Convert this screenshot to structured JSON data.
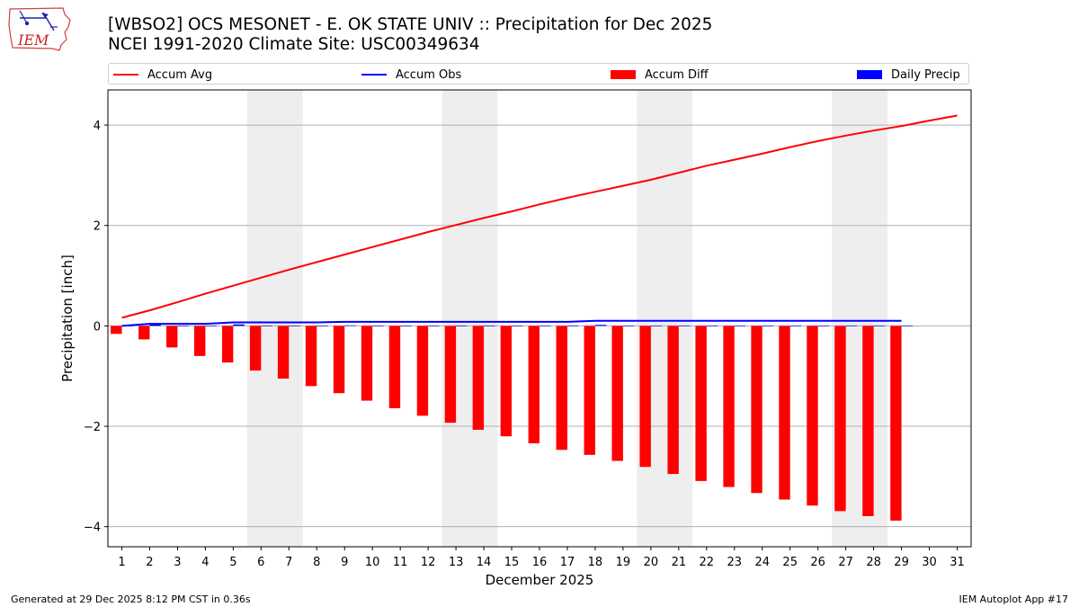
{
  "header": {
    "title_line1": "[WBSO2] OCS MESONET - E. OK STATE UNIV :: Precipitation for Dec 2025",
    "title_line2": "NCEI 1991-2020 Climate Site: USC00349634",
    "logo_text": "IEM"
  },
  "legend": {
    "items": [
      {
        "label": "Accum Avg",
        "kind": "line",
        "color": "#ff0000"
      },
      {
        "label": "Accum Obs",
        "kind": "line",
        "color": "#0000ff"
      },
      {
        "label": "Accum Diff",
        "kind": "bar",
        "color": "#ff0000"
      },
      {
        "label": "Daily Precip",
        "kind": "bar",
        "color": "#0000ff"
      }
    ]
  },
  "footer": {
    "generated": "Generated at 29 Dec 2025 8:12 PM CST in 0.36s",
    "app": "IEM Autoplot App #17"
  },
  "chart_data": {
    "type": "bar",
    "title": "[WBSO2] OCS MESONET - E. OK STATE UNIV :: Precipitation for Dec 2025",
    "xlabel": "December 2025",
    "ylabel": "Precipitation [inch]",
    "xlim": [
      0.5,
      31.5
    ],
    "ylim": [
      -4.4,
      4.7
    ],
    "yticks": [
      -4,
      -2,
      0,
      2,
      4
    ],
    "ytick_labels": [
      "−4",
      "−2",
      "0",
      "2",
      "4"
    ],
    "grid": "y",
    "legend_position": "top",
    "days": [
      1,
      2,
      3,
      4,
      5,
      6,
      7,
      8,
      9,
      10,
      11,
      12,
      13,
      14,
      15,
      16,
      17,
      18,
      19,
      20,
      21,
      22,
      23,
      24,
      25,
      26,
      27,
      28,
      29,
      30,
      31
    ],
    "weekend_spans": [
      [
        5.5,
        7.5
      ],
      [
        12.5,
        14.5
      ],
      [
        19.5,
        21.5
      ],
      [
        26.5,
        28.5
      ]
    ],
    "series": [
      {
        "name": "Accum Avg",
        "type": "line",
        "color": "#ff0000",
        "x": [
          1,
          2,
          3,
          4,
          5,
          6,
          7,
          8,
          9,
          10,
          11,
          12,
          13,
          14,
          15,
          16,
          17,
          18,
          19,
          20,
          21,
          22,
          23,
          24,
          25,
          26,
          27,
          28,
          29,
          30,
          31
        ],
        "values": [
          0.16,
          0.31,
          0.47,
          0.64,
          0.8,
          0.96,
          1.12,
          1.27,
          1.42,
          1.57,
          1.72,
          1.87,
          2.01,
          2.15,
          2.28,
          2.42,
          2.55,
          2.67,
          2.79,
          2.91,
          3.05,
          3.19,
          3.31,
          3.43,
          3.56,
          3.68,
          3.79,
          3.89,
          3.98,
          4.09,
          4.19
        ]
      },
      {
        "name": "Accum Obs",
        "type": "line",
        "color": "#0000ff",
        "x": [
          1,
          2,
          3,
          4,
          5,
          6,
          7,
          8,
          9,
          10,
          11,
          12,
          13,
          14,
          15,
          16,
          17,
          18,
          19,
          20,
          21,
          22,
          23,
          24,
          25,
          26,
          27,
          28,
          29
        ],
        "values": [
          0.0,
          0.04,
          0.04,
          0.04,
          0.07,
          0.07,
          0.07,
          0.07,
          0.08,
          0.08,
          0.08,
          0.08,
          0.08,
          0.08,
          0.08,
          0.08,
          0.08,
          0.1,
          0.1,
          0.1,
          0.1,
          0.1,
          0.1,
          0.1,
          0.1,
          0.1,
          0.1,
          0.1,
          0.1
        ]
      },
      {
        "name": "Accum Diff",
        "type": "bar",
        "color": "#ff0000",
        "x": [
          1,
          2,
          3,
          4,
          5,
          6,
          7,
          8,
          9,
          10,
          11,
          12,
          13,
          14,
          15,
          16,
          17,
          18,
          19,
          20,
          21,
          22,
          23,
          24,
          25,
          26,
          27,
          28,
          29
        ],
        "values": [
          -0.16,
          -0.27,
          -0.43,
          -0.6,
          -0.73,
          -0.89,
          -1.05,
          -1.2,
          -1.34,
          -1.49,
          -1.64,
          -1.79,
          -1.93,
          -2.07,
          -2.2,
          -2.34,
          -2.47,
          -2.57,
          -2.69,
          -2.81,
          -2.95,
          -3.09,
          -3.21,
          -3.33,
          -3.46,
          -3.58,
          -3.69,
          -3.79,
          -3.88
        ]
      },
      {
        "name": "Daily Precip",
        "type": "bar",
        "color": "#0000ff",
        "x": [
          1,
          2,
          3,
          4,
          5,
          6,
          7,
          8,
          9,
          10,
          11,
          12,
          13,
          14,
          15,
          16,
          17,
          18,
          19,
          20,
          21,
          22,
          23,
          24,
          25,
          26,
          27,
          28,
          29
        ],
        "values": [
          0.0,
          0.04,
          0.0,
          0.0,
          0.03,
          0.0,
          0.0,
          0.0,
          0.01,
          0.0,
          0.0,
          0.0,
          0.0,
          0.0,
          0.0,
          0.0,
          0.0,
          0.02,
          0.0,
          0.0,
          0.0,
          0.0,
          0.0,
          0.0,
          0.0,
          0.0,
          0.0,
          0.0,
          0.0
        ]
      }
    ]
  }
}
